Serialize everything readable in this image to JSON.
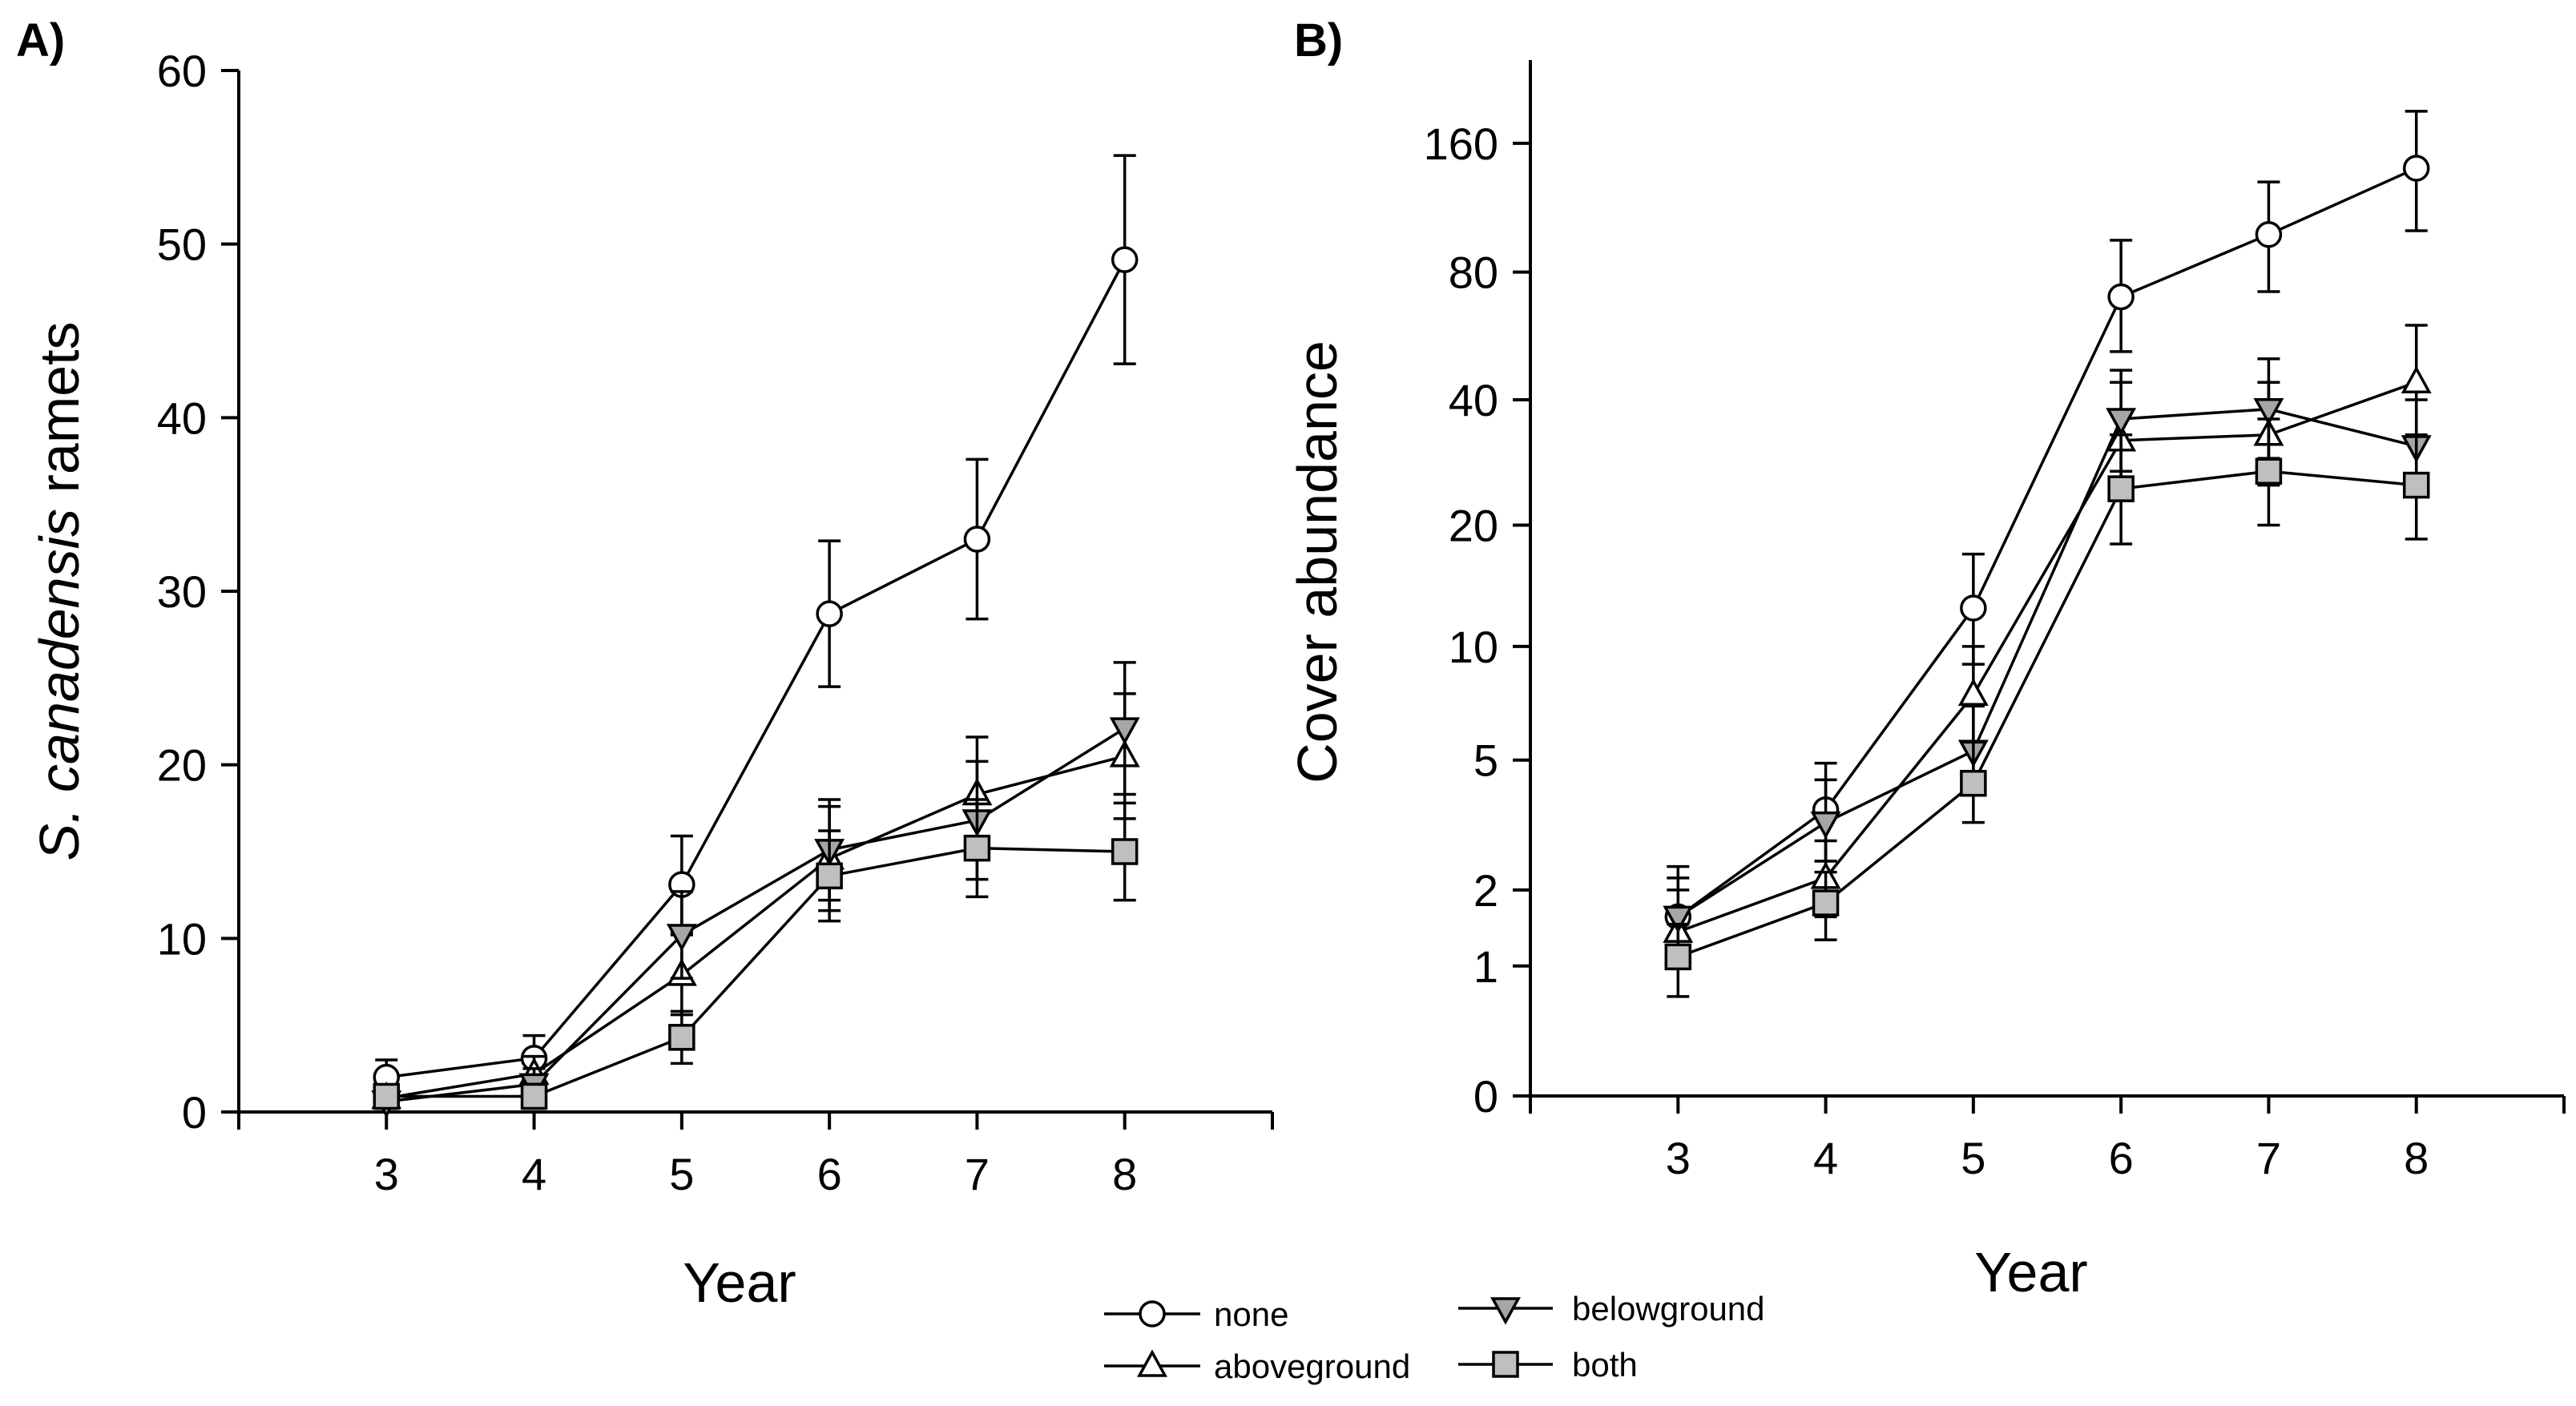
{
  "chart_data": [
    {
      "type": "line",
      "panel_label": "A)",
      "xlabel": "Year",
      "ylabel_italic": "S. canadensis",
      "ylabel_rest": " ramets",
      "xlim": [
        2,
        9
      ],
      "ylim": [
        0,
        60
      ],
      "xticks": [
        3,
        4,
        5,
        6,
        7,
        8
      ],
      "yticks": [
        0,
        10,
        20,
        30,
        40,
        50,
        60
      ],
      "ytick_labels": [
        "0",
        "10",
        "20",
        "30",
        "40",
        "50",
        "60"
      ],
      "series": [
        {
          "name": "none",
          "marker": "circle",
          "fill": "#ffffff",
          "x": [
            3,
            4,
            5,
            6,
            7,
            8
          ],
          "values": [
            2,
            3.1,
            13.1,
            28.7,
            33,
            49.1
          ],
          "err": [
            1.0,
            1.3,
            2.8,
            4.2,
            4.6,
            6.0
          ]
        },
        {
          "name": "aboveground",
          "marker": "triangle-up",
          "fill": "#ffffff",
          "x": [
            3,
            4,
            5,
            6,
            7,
            8
          ],
          "values": [
            0.8,
            2.2,
            7.9,
            14.6,
            18.3,
            20.5
          ],
          "err": [
            0.6,
            1.0,
            2.3,
            3.0,
            3.3,
            3.6
          ]
        },
        {
          "name": "belowground",
          "marker": "triangle-down",
          "fill": "#a6a6a6",
          "x": [
            3,
            4,
            5,
            6,
            7,
            8
          ],
          "values": [
            0.6,
            1.6,
            10.2,
            15.1,
            16.8,
            22.1
          ],
          "err": [
            0.6,
            0.9,
            2.5,
            2.9,
            3.4,
            3.8
          ]
        },
        {
          "name": "both",
          "marker": "square",
          "fill": "#bfbfbf",
          "x": [
            3,
            4,
            5,
            6,
            7,
            8
          ],
          "values": [
            0.9,
            0.9,
            4.3,
            13.6,
            15.2,
            15
          ],
          "err": [
            0.6,
            0.7,
            1.5,
            2.6,
            2.8,
            2.8
          ]
        }
      ]
    },
    {
      "type": "line",
      "panel_label": "B)",
      "xlabel": "Year",
      "ylabel": "Cover abundance",
      "yscale": "log(y+1)",
      "xlim": [
        2,
        9
      ],
      "ylim": [
        0,
        250
      ],
      "xticks": [
        3,
        4,
        5,
        6,
        7,
        8
      ],
      "yticks": [
        0,
        1,
        2,
        5,
        10,
        20,
        40,
        80,
        160
      ],
      "ytick_labels": [
        "0",
        "1",
        "2",
        "5",
        "10",
        "20",
        "40",
        "80",
        "160"
      ],
      "series": [
        {
          "name": "none",
          "marker": "circle",
          "fill": "#ffffff",
          "x": [
            3,
            4,
            5,
            6,
            7,
            8
          ],
          "values": [
            1.6,
            3.6,
            12.5,
            70,
            98,
            140
          ],
          "err_low": [
            1.0,
            2.5,
            9.0,
            52,
            72,
            100
          ],
          "err_high": [
            2.4,
            4.9,
            17,
            95,
            130,
            190
          ]
        },
        {
          "name": "aboveground",
          "marker": "triangle-up",
          "fill": "#ffffff",
          "x": [
            3,
            4,
            5,
            6,
            7,
            8
          ],
          "values": [
            1.4,
            2.2,
            7.5,
            32,
            33,
            44
          ],
          "err_low": [
            1.0,
            1.6,
            5.5,
            24,
            25,
            32
          ],
          "err_high": [
            2.0,
            2.9,
            10,
            44,
            44,
            60
          ]
        },
        {
          "name": "belowground",
          "marker": "triangle-down",
          "fill": "#a6a6a6",
          "x": [
            3,
            4,
            5,
            6,
            7,
            8
          ],
          "values": [
            1.6,
            3.3,
            5.3,
            36,
            38,
            31
          ],
          "err_low": [
            1.2,
            2.5,
            4.0,
            27,
            29,
            24
          ],
          "err_high": [
            2.2,
            4.4,
            7.0,
            47,
            50,
            40
          ]
        },
        {
          "name": "both",
          "marker": "square",
          "fill": "#bfbfbf",
          "x": [
            3,
            4,
            5,
            6,
            7,
            8
          ],
          "values": [
            1.1,
            1.8,
            4.3,
            24.5,
            27,
            25
          ],
          "err_low": [
            0.7,
            1.3,
            3.3,
            18,
            20,
            18.5
          ],
          "err_high": [
            1.5,
            2.3,
            5.6,
            33,
            36,
            33
          ]
        }
      ]
    }
  ],
  "legend": {
    "items": [
      {
        "name": "none",
        "label": "none",
        "marker": "circle",
        "fill": "#ffffff"
      },
      {
        "name": "belowground",
        "label": "belowground",
        "marker": "triangle-down",
        "fill": "#a6a6a6"
      },
      {
        "name": "aboveground",
        "label": "aboveground",
        "marker": "triangle-up",
        "fill": "#ffffff"
      },
      {
        "name": "both",
        "label": "both",
        "marker": "square",
        "fill": "#bfbfbf"
      }
    ]
  }
}
